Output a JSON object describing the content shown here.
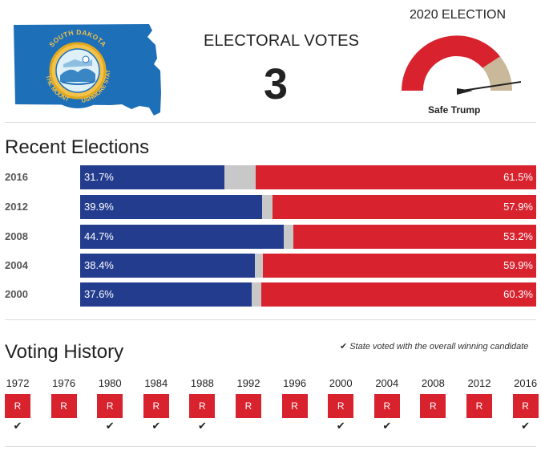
{
  "header": {
    "electoral_votes_label": "ELECTORAL VOTES",
    "electoral_votes": "3",
    "election_title": "2020 ELECTION",
    "rating": "Safe Trump",
    "seal": {
      "top_text": "SOUTH DAKOTA",
      "left_text": "THE MOUNT",
      "right_text": "RUSHMORE STATE"
    }
  },
  "colors": {
    "dem": "#233c8e",
    "rep": "#d8232f",
    "other": "#c8c8c8",
    "flag": "#1d6fb8"
  },
  "recent": {
    "title": "Recent Elections",
    "rows": [
      {
        "year": "2016",
        "dem": 31.7,
        "rep": 61.5,
        "dem_label": "31.7%",
        "rep_label": "61.5%"
      },
      {
        "year": "2012",
        "dem": 39.9,
        "rep": 57.9,
        "dem_label": "39.9%",
        "rep_label": "57.9%"
      },
      {
        "year": "2008",
        "dem": 44.7,
        "rep": 53.2,
        "dem_label": "44.7%",
        "rep_label": "53.2%"
      },
      {
        "year": "2004",
        "dem": 38.4,
        "rep": 59.9,
        "dem_label": "38.4%",
        "rep_label": "59.9%"
      },
      {
        "year": "2000",
        "dem": 37.6,
        "rep": 60.3,
        "dem_label": "37.6%",
        "rep_label": "60.3%"
      }
    ]
  },
  "history": {
    "title": "Voting History",
    "legend": "State voted with the overall winning candidate",
    "items": [
      {
        "year": "1972",
        "party": "R",
        "winner": true
      },
      {
        "year": "1976",
        "party": "R",
        "winner": false
      },
      {
        "year": "1980",
        "party": "R",
        "winner": true
      },
      {
        "year": "1984",
        "party": "R",
        "winner": true
      },
      {
        "year": "1988",
        "party": "R",
        "winner": true
      },
      {
        "year": "1992",
        "party": "R",
        "winner": false
      },
      {
        "year": "1996",
        "party": "R",
        "winner": false
      },
      {
        "year": "2000",
        "party": "R",
        "winner": true
      },
      {
        "year": "2004",
        "party": "R",
        "winner": true
      },
      {
        "year": "2008",
        "party": "R",
        "winner": false
      },
      {
        "year": "2012",
        "party": "R",
        "winner": false
      },
      {
        "year": "2016",
        "party": "R",
        "winner": true
      }
    ]
  }
}
